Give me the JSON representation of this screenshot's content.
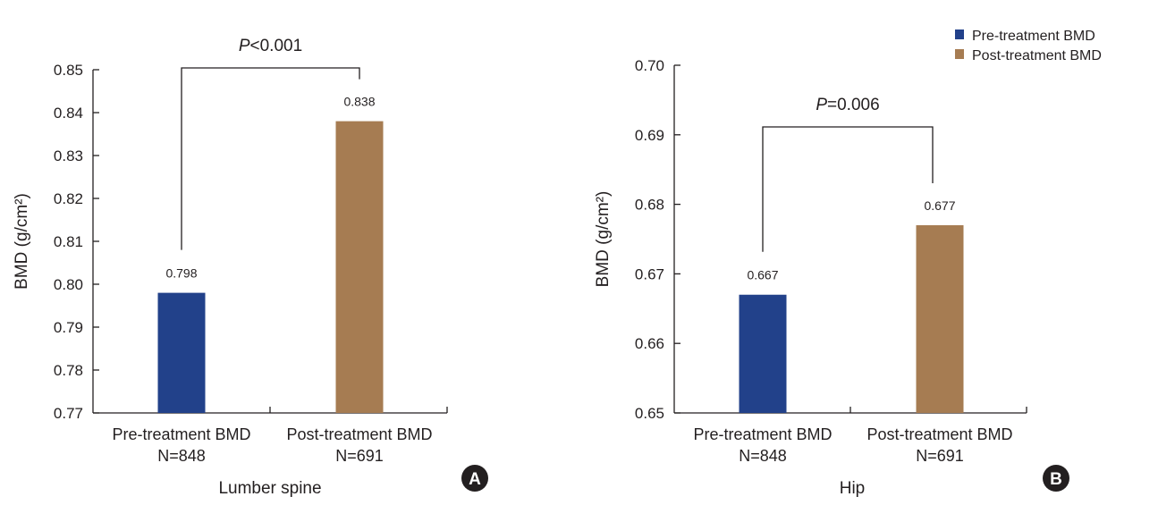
{
  "colors": {
    "pre": "#22418a",
    "post": "#a67c52",
    "axis": "#231f20"
  },
  "legend": {
    "placement": "top-right",
    "items": [
      {
        "label": "Pre-treatment BMD",
        "color": "#22418a"
      },
      {
        "label": "Post-treatment BMD",
        "color": "#a67c52"
      }
    ]
  },
  "chart_data": [
    {
      "type": "bar",
      "panel_label": "A",
      "xlabel": "Lumber spine",
      "ylabel": "BMD (g/cm²)",
      "ylim": [
        0.77,
        0.85
      ],
      "yticks": [
        "0.77",
        "0.78",
        "0.79",
        "0.80",
        "0.81",
        "0.82",
        "0.83",
        "0.84",
        "0.85"
      ],
      "categories": [
        {
          "label": "Pre-treatment BMD",
          "n": "N=848"
        },
        {
          "label": "Post-treatment BMD",
          "n": "N=691"
        }
      ],
      "values": [
        0.798,
        0.838
      ],
      "value_labels": [
        "0.798",
        "0.838"
      ],
      "significance": {
        "symbol": "P",
        "relation": "<0.001"
      },
      "grid": false
    },
    {
      "type": "bar",
      "panel_label": "B",
      "xlabel": "Hip",
      "ylabel": "BMD (g/cm²)",
      "ylim": [
        0.65,
        0.7
      ],
      "yticks": [
        "0.65",
        "0.66",
        "0.67",
        "0.68",
        "0.69",
        "0.70"
      ],
      "categories": [
        {
          "label": "Pre-treatment BMD",
          "n": "N=848"
        },
        {
          "label": "Post-treatment BMD",
          "n": "N=691"
        }
      ],
      "values": [
        0.667,
        0.677
      ],
      "value_labels": [
        "0.667",
        "0.677"
      ],
      "significance": {
        "symbol": "P",
        "relation": "=0.006"
      },
      "grid": false
    }
  ]
}
